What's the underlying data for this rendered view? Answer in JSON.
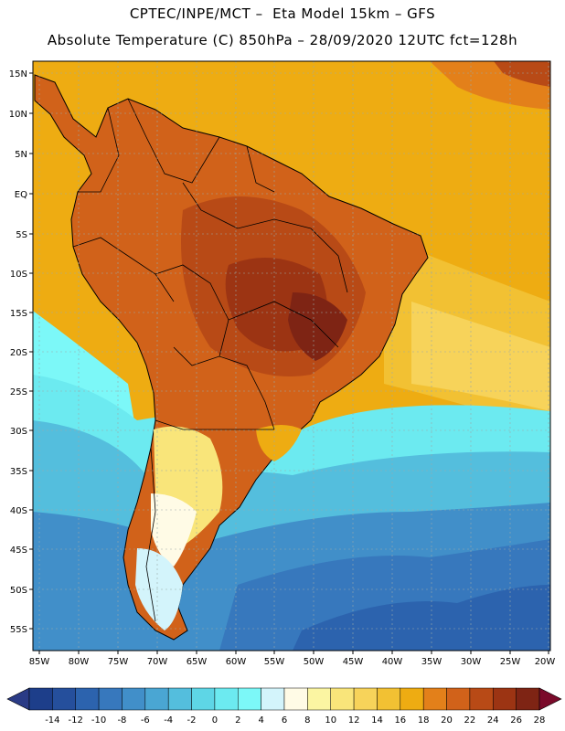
{
  "header": {
    "line1": "CPTEC/INPE/MCT –  Eta Model 15km – GFS",
    "line2": "Absolute Temperature (C) 850hPa – 28/09/2020 12UTC fct=128h"
  },
  "map": {
    "region": "South America",
    "lat_labels": [
      "15N",
      "10N",
      "5N",
      "EQ",
      "5S",
      "10S",
      "15S",
      "20S",
      "25S",
      "30S",
      "35S",
      "40S",
      "45S",
      "50S",
      "55S"
    ],
    "lon_labels": [
      "85W",
      "80W",
      "75W",
      "70W",
      "65W",
      "60W",
      "55W",
      "50W",
      "45W",
      "40W",
      "35W",
      "30W",
      "25W",
      "20W"
    ],
    "lat_range": [
      -57.5,
      16.5
    ],
    "lon_range": [
      -86,
      -20
    ]
  },
  "colorbar": {
    "labels": [
      "-14",
      "-12",
      "-10",
      "-8",
      "-6",
      "-4",
      "-2",
      "0",
      "2",
      "4",
      "6",
      "8",
      "10",
      "12",
      "14",
      "16",
      "18",
      "20",
      "22",
      "24",
      "26",
      "28"
    ],
    "colors": [
      "#1d3e8a",
      "#254f9c",
      "#2c63ae",
      "#3778bd",
      "#418fc9",
      "#4aa6d3",
      "#54bedd",
      "#5ed6e6",
      "#6ceaf0",
      "#7cf8f8",
      "#d3f4fb",
      "#fffbe6",
      "#fbf5a2",
      "#f9e57a",
      "#f7d35a",
      "#f2c133",
      "#eeac12",
      "#e3801a",
      "#d1621a",
      "#b84a16",
      "#9c3413",
      "#7e2414"
    ],
    "under_color": "#2a3b86",
    "over_color": "#7a0a2a"
  }
}
